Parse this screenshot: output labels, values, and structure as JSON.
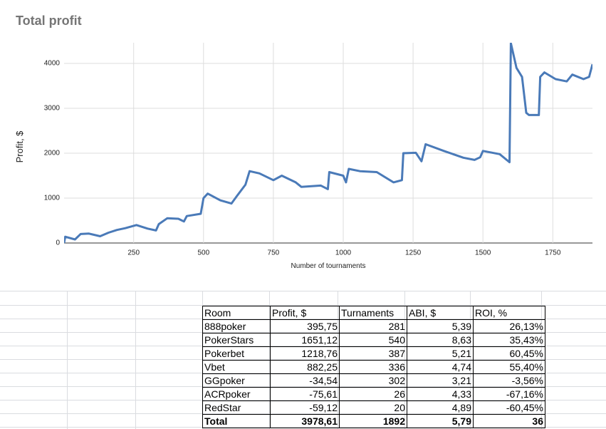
{
  "chart_data": {
    "type": "line",
    "title": "Total profit",
    "x_label": "Number of tournaments",
    "y_label": "Profit, $",
    "x": [
      1,
      5,
      40,
      60,
      90,
      130,
      160,
      190,
      220,
      260,
      300,
      330,
      340,
      370,
      410,
      430,
      440,
      490,
      500,
      515,
      560,
      600,
      620,
      650,
      665,
      700,
      750,
      780,
      830,
      850,
      920,
      945,
      950,
      1000,
      1010,
      1020,
      1060,
      1120,
      1180,
      1210,
      1215,
      1260,
      1280,
      1295,
      1360,
      1430,
      1470,
      1490,
      1500,
      1560,
      1595,
      1600,
      1620,
      1640,
      1655,
      1665,
      1700,
      1705,
      1720,
      1760,
      1800,
      1820,
      1860,
      1880,
      1892
    ],
    "values": [
      0,
      140,
      80,
      200,
      210,
      150,
      230,
      290,
      330,
      400,
      320,
      280,
      420,
      550,
      540,
      480,
      600,
      650,
      1000,
      1100,
      950,
      880,
      1050,
      1300,
      1600,
      1550,
      1400,
      1500,
      1350,
      1250,
      1280,
      1200,
      1580,
      1500,
      1350,
      1650,
      1600,
      1580,
      1350,
      1400,
      2000,
      2010,
      1820,
      2200,
      2050,
      1900,
      1850,
      1910,
      2050,
      1980,
      1800,
      4450,
      3900,
      3700,
      2900,
      2850,
      2850,
      3700,
      3800,
      3650,
      3600,
      3750,
      3650,
      3700,
      3980
    ],
    "color": "#4a7ab8",
    "xlim": [
      1,
      1892
    ],
    "xticks": [
      250,
      500,
      750,
      1000,
      1250,
      1500,
      1750
    ],
    "ylim": [
      0,
      4460
    ],
    "yticks": [
      0,
      1000,
      2000,
      3000,
      4000
    ],
    "grid": true
  },
  "table": {
    "header": [
      "Room",
      "Profit, $",
      "Turnaments",
      "ABI, $",
      "ROI, %"
    ],
    "rows": [
      [
        "888poker",
        "395,75",
        "281",
        "5,39",
        "26,13%"
      ],
      [
        "PokerStars",
        "1651,12",
        "540",
        "8,63",
        "35,43%"
      ],
      [
        "Pokerbet",
        "1218,76",
        "387",
        "5,21",
        "60,45%"
      ],
      [
        "Vbet",
        "882,25",
        "336",
        "4,74",
        "55,40%"
      ],
      [
        "GGpoker",
        "-34,54",
        "302",
        "3,21",
        "-3,56%"
      ],
      [
        "ACRpoker",
        "-75,61",
        "26",
        "4,33",
        "-67,16%"
      ],
      [
        "RedStar",
        "-59,12",
        "20",
        "4,89",
        "-60,45%"
      ]
    ],
    "total": [
      "Total",
      "3978,61",
      "1892",
      "5,79",
      "36"
    ]
  }
}
